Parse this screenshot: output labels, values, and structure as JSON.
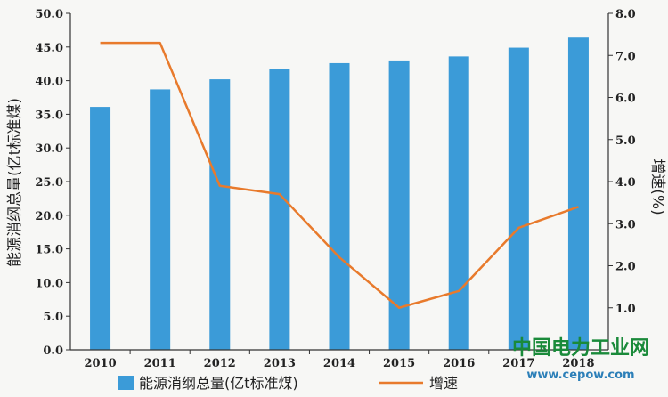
{
  "chart_data": {
    "type": "bar",
    "categories": [
      "2010",
      "2011",
      "2012",
      "2013",
      "2014",
      "2015",
      "2016",
      "2017",
      "2018"
    ],
    "series": [
      {
        "name": "能源消纲总量(亿t标准煤)",
        "type": "bar",
        "axis": "left",
        "color": "#3b9bd8",
        "values": [
          36.1,
          38.7,
          40.2,
          41.7,
          42.6,
          43.0,
          43.6,
          44.9,
          46.4
        ]
      },
      {
        "name": "增速",
        "type": "line",
        "axis": "right",
        "color": "#e87a2c",
        "values": [
          7.3,
          7.3,
          3.9,
          3.7,
          2.2,
          1.0,
          1.4,
          2.9,
          3.4
        ]
      }
    ],
    "ylabel": "能源消纲总量(亿t标准煤)",
    "y2label": "增速(%)",
    "ylim": [
      0,
      50
    ],
    "y2lim": [
      0,
      8
    ],
    "yticks": [
      "0.0",
      "5.0",
      "10.0",
      "15.0",
      "20.0",
      "25.0",
      "30.0",
      "35.0",
      "40.0",
      "45.0",
      "50.0"
    ],
    "y2ticks": [
      "1.0",
      "2.0",
      "3.0",
      "4.0",
      "5.0",
      "6.0",
      "7.0",
      "8.0"
    ],
    "legend_position": "bottom",
    "grid": false
  },
  "watermark": {
    "text": "中国电力工业网",
    "url": "www.cepow.com"
  }
}
